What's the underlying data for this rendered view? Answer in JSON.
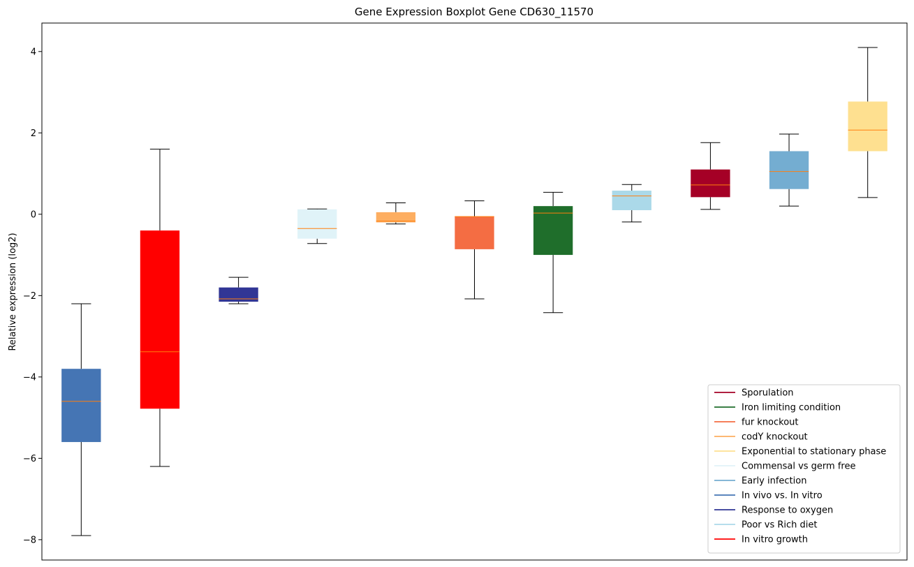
{
  "chart_data": {
    "type": "boxplot",
    "title": "Gene Expression Boxplot Gene CD630_11570",
    "xlabel": "",
    "ylabel": "Relative expression (log2)",
    "ylim": [
      -8.5,
      4.7
    ],
    "yticks": [
      -8,
      -6,
      -4,
      -2,
      0,
      2,
      4
    ],
    "ytick_labels": [
      "−8",
      "−6",
      "−4",
      "−2",
      "0",
      "2",
      "4"
    ],
    "grid": false,
    "median_color": "#ff7f0e",
    "whisker_color": "#000000",
    "boxes": [
      {
        "color": "#4575b4",
        "whislo": -7.9,
        "q1": -5.6,
        "med": -4.6,
        "q3": -3.8,
        "whishi": -2.2
      },
      {
        "color": "#ff0000",
        "whislo": -6.2,
        "q1": -4.78,
        "med": -3.38,
        "q3": -0.4,
        "whishi": 1.6
      },
      {
        "color": "#313695",
        "whislo": -2.2,
        "q1": -2.15,
        "med": -2.08,
        "q3": -1.8,
        "whishi": -1.55
      },
      {
        "color": "#e0f3f8",
        "whislo": -0.72,
        "q1": -0.6,
        "med": -0.35,
        "q3": 0.12,
        "whishi": 0.13
      },
      {
        "color": "#fdae61",
        "whislo": -0.24,
        "q1": -0.2,
        "med": -0.17,
        "q3": 0.05,
        "whishi": 0.28
      },
      {
        "color": "#f46d43",
        "whislo": -2.08,
        "q1": -0.86,
        "med": -0.06,
        "q3": -0.05,
        "whishi": 0.33
      },
      {
        "color": "#1f6e2b",
        "whislo": -2.42,
        "q1": -1.0,
        "med": 0.03,
        "q3": 0.2,
        "whishi": 0.54
      },
      {
        "color": "#abd9e9",
        "whislo": -0.19,
        "q1": 0.1,
        "med": 0.45,
        "q3": 0.58,
        "whishi": 0.73
      },
      {
        "color": "#a50026",
        "whislo": 0.12,
        "q1": 0.42,
        "med": 0.72,
        "q3": 1.1,
        "whishi": 1.76
      },
      {
        "color": "#74add1",
        "whislo": 0.2,
        "q1": 0.62,
        "med": 1.05,
        "q3": 1.55,
        "whishi": 1.97
      },
      {
        "color": "#fee090",
        "whislo": 0.41,
        "q1": 1.55,
        "med": 2.07,
        "q3": 2.77,
        "whishi": 4.1
      }
    ],
    "legend": {
      "position": "lower-right",
      "entries": [
        {
          "label": "Sporulation",
          "color": "#a50026"
        },
        {
          "label": "Iron limiting condition",
          "color": "#1f6e2b"
        },
        {
          "label": "fur knockout",
          "color": "#f46d43"
        },
        {
          "label": "codY knockout",
          "color": "#fdae61"
        },
        {
          "label": "Exponential to stationary phase",
          "color": "#fee090"
        },
        {
          "label": "Commensal vs germ free",
          "color": "#e0f3f8"
        },
        {
          "label": "Early infection",
          "color": "#74add1"
        },
        {
          "label": "In vivo vs. In vitro",
          "color": "#4575b4"
        },
        {
          "label": "Response to oxygen",
          "color": "#313695"
        },
        {
          "label": "Poor vs Rich diet",
          "color": "#abd9e9"
        },
        {
          "label": "In vitro growth",
          "color": "#ff0000"
        }
      ]
    }
  }
}
